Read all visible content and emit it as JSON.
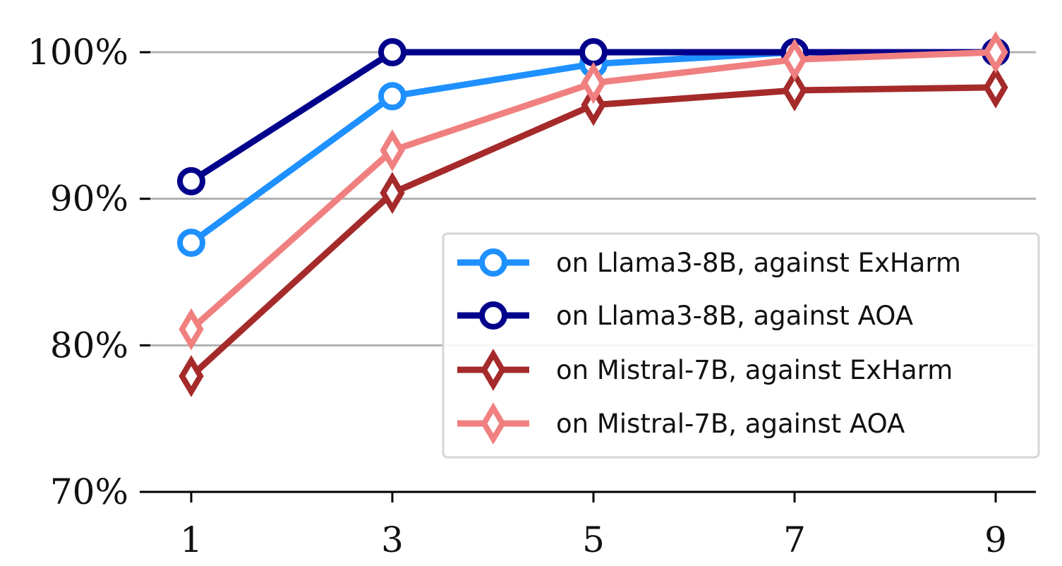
{
  "chart_data": {
    "type": "line",
    "x": [
      1,
      3,
      5,
      7,
      9
    ],
    "xticks": [
      "1",
      "3",
      "5",
      "7",
      "9"
    ],
    "xlim": [
      0.5,
      9.4
    ],
    "ylim": [
      70,
      100
    ],
    "yticks": [
      70,
      80,
      90,
      100
    ],
    "ytick_labels": [
      "70%",
      "80%",
      "90%",
      "100%"
    ],
    "gridlines_y": [
      80,
      90,
      100
    ],
    "grid": "horizontal",
    "legend_position": "center-right",
    "series": [
      {
        "name": "on Llama3-8B, against ExHarm",
        "values": [
          87.0,
          97.0,
          99.2,
          100.0,
          100.0
        ],
        "color": "#1e90ff",
        "marker": "circle"
      },
      {
        "name": "on Llama3-8B, against AOA",
        "values": [
          91.2,
          100.0,
          100.0,
          100.0,
          100.0
        ],
        "color": "#00008b",
        "marker": "circle"
      },
      {
        "name": "on Mistral-7B, against ExHarm",
        "values": [
          77.9,
          90.4,
          96.4,
          97.4,
          97.6
        ],
        "color": "#a52a2a",
        "marker": "diamond"
      },
      {
        "name": "on Mistral-7B, against AOA",
        "values": [
          81.1,
          93.3,
          97.9,
          99.5,
          100.0
        ],
        "color": "#f08080",
        "marker": "diamond"
      }
    ]
  }
}
